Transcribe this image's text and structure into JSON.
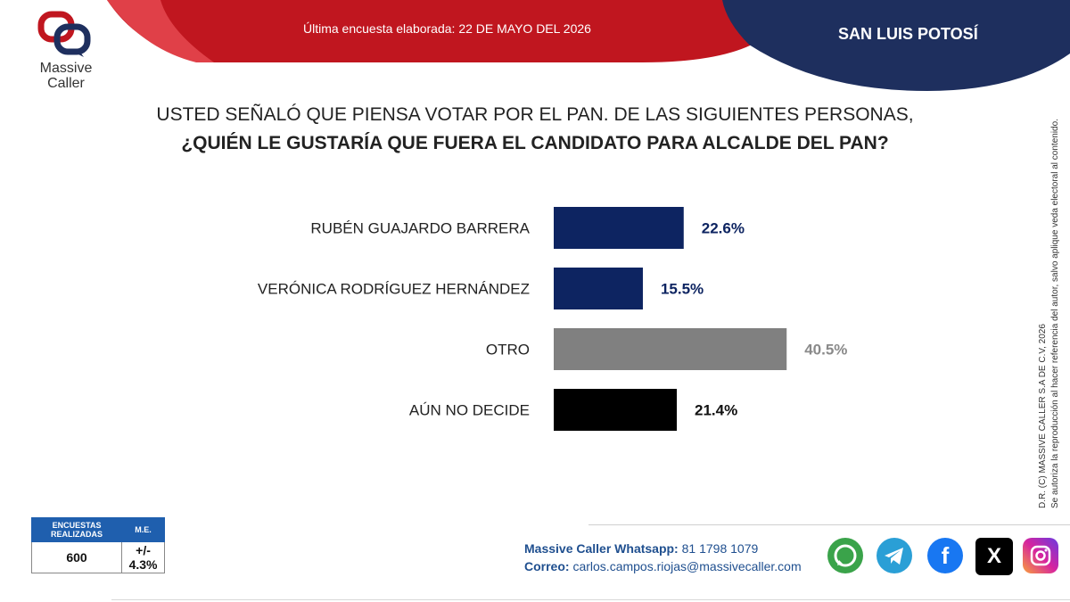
{
  "header": {
    "survey_date": "Última encuesta elaborada: 22 DE MAYO DEL 2026",
    "region": "SAN LUIS POTOSÍ",
    "banner_color": "#c0161f",
    "region_color": "#1e2f5e"
  },
  "logo": {
    "line1": "Massive",
    "line2": "Caller"
  },
  "question": {
    "line1": "USTED SEÑALÓ QUE PIENSA VOTAR POR EL PAN. DE LAS SIGUIENTES PERSONAS,",
    "line2": "¿QUIÉN LE GUSTARÍA QUE FUERA EL CANDIDATO PARA ALCALDE DEL PAN?"
  },
  "chart_data": {
    "type": "bar",
    "orientation": "horizontal",
    "categories": [
      "RUBÉN GUAJARDO BARRERA",
      "VERÓNICA RODRÍGUEZ HERNÁNDEZ",
      "OTRO",
      "AÚN NO DECIDE"
    ],
    "values": [
      22.6,
      15.5,
      40.5,
      21.4
    ],
    "value_labels": [
      "22.6%",
      "15.5%",
      "40.5%",
      "21.4%"
    ],
    "colors": [
      "#0d2461",
      "#0d2461",
      "#808080",
      "#000000"
    ],
    "label_colors": [
      "#0d2461",
      "#0d2461",
      "#8a8a8a",
      "#111111"
    ]
  },
  "copyright": {
    "line1": "D.R. (C) MASSIVE CALLER S.A DE C.V, 2026",
    "line2": "Se autoriza la reproducción al hacer referencia del autor, salvo aplique veda electoral al contenido."
  },
  "sample": {
    "header_surveys": "ENCUESTAS REALIZADAS",
    "header_me": "M.E.",
    "surveys": "600",
    "me": "+/- 4.3%"
  },
  "contact": {
    "whatsapp_label": "Massive Caller Whatsapp:",
    "whatsapp_number": "81 1798 1079",
    "email_label": "Correo:",
    "email": "carlos.campos.riojas@massivecaller.com"
  },
  "social": [
    {
      "icon": "whatsapp-icon",
      "color": "#3aa34a"
    },
    {
      "icon": "telegram-icon",
      "color": "#2a9fd6"
    },
    {
      "icon": "facebook-icon",
      "color": "#1877f2"
    },
    {
      "icon": "x-icon",
      "color": "#000000"
    },
    {
      "icon": "instagram-icon",
      "color": "#d6249f"
    }
  ]
}
